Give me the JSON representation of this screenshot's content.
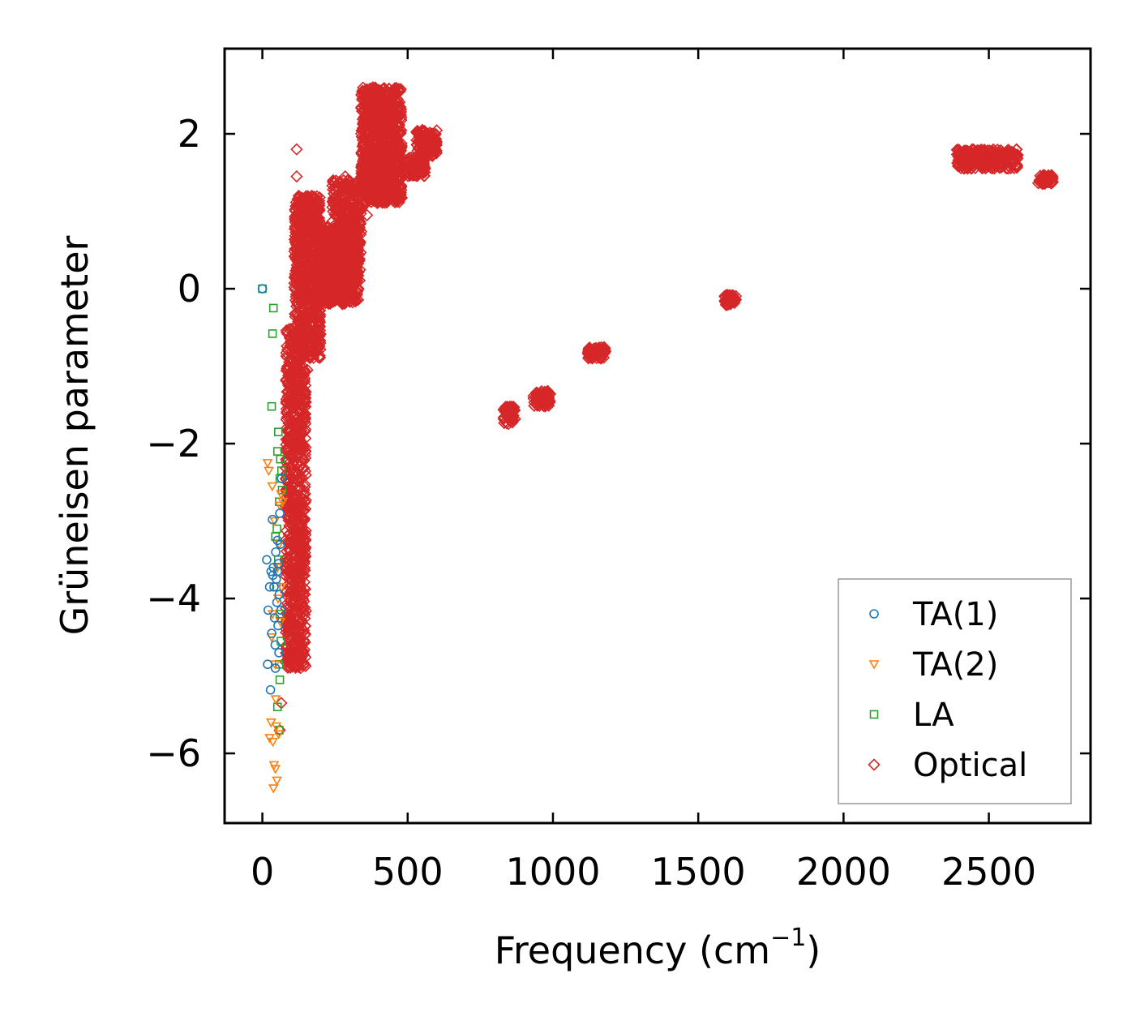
{
  "chart_data": {
    "type": "scatter",
    "title": "",
    "xlabel_main": "Frequency (cm",
    "xlabel_sup": "−1",
    "xlabel_tail": ")",
    "ylabel": "Grüneisen parameter",
    "xlim": [
      -130,
      2850
    ],
    "ylim": [
      -6.9,
      3.1
    ],
    "xticks": [
      0,
      500,
      1000,
      1500,
      2000,
      2500
    ],
    "xtick_labels": [
      "0",
      "500",
      "1000",
      "1500",
      "2000",
      "2500"
    ],
    "yticks": [
      -6,
      -4,
      -2,
      0,
      2
    ],
    "ytick_labels": [
      "−6",
      "−4",
      "−2",
      "0",
      "2"
    ],
    "grid": false,
    "legend_position": "lower-right",
    "series": [
      {
        "name": "TA(1)",
        "marker": "circle",
        "color": "#1f77b4",
        "points": [
          [
            0,
            0
          ],
          [
            15,
            -3.5
          ],
          [
            20,
            -4.15
          ],
          [
            18,
            -4.85
          ],
          [
            28,
            -5.18
          ],
          [
            30,
            -3.65
          ],
          [
            32,
            -4.45
          ],
          [
            35,
            -2.98
          ],
          [
            38,
            -3.6
          ],
          [
            40,
            -3.85
          ],
          [
            42,
            -4.25
          ],
          [
            44,
            -4.6
          ],
          [
            46,
            -3.4
          ],
          [
            48,
            -3.75
          ],
          [
            50,
            -4.05
          ],
          [
            52,
            -3.25
          ],
          [
            54,
            -4.35
          ],
          [
            55,
            -3.55
          ],
          [
            57,
            -4.7
          ],
          [
            58,
            -3.95
          ],
          [
            60,
            -2.9
          ],
          [
            62,
            -3.3
          ],
          [
            64,
            -4.15
          ],
          [
            66,
            -2.45
          ],
          [
            45,
            -4.9
          ],
          [
            36,
            -3.7
          ],
          [
            25,
            -3.85
          ],
          [
            52,
            -3.65
          ]
        ]
      },
      {
        "name": "TA(2)",
        "marker": "triangle-down",
        "color": "#ff7f0e",
        "points": [
          [
            18,
            -2.25
          ],
          [
            22,
            -2.35
          ],
          [
            25,
            -5.8
          ],
          [
            30,
            -5.6
          ],
          [
            32,
            -4.5
          ],
          [
            34,
            -2.55
          ],
          [
            36,
            -5.85
          ],
          [
            38,
            -6.45
          ],
          [
            40,
            -6.15
          ],
          [
            42,
            -3.0
          ],
          [
            44,
            -4.85
          ],
          [
            46,
            -5.3
          ],
          [
            48,
            -5.65
          ],
          [
            50,
            -6.35
          ],
          [
            52,
            -3.6
          ],
          [
            54,
            -4.0
          ],
          [
            56,
            -5.75
          ],
          [
            58,
            -3.3
          ],
          [
            60,
            -2.8
          ],
          [
            62,
            -4.3
          ],
          [
            64,
            -2.65
          ],
          [
            66,
            -3.85
          ],
          [
            70,
            -2.75
          ],
          [
            45,
            -6.2
          ],
          [
            35,
            -4.2
          ]
        ]
      },
      {
        "name": "LA",
        "marker": "square",
        "color": "#2ca02c",
        "points": [
          [
            0,
            0
          ],
          [
            38,
            -0.25
          ],
          [
            35,
            -0.58
          ],
          [
            32,
            -1.52
          ],
          [
            55,
            -1.85
          ],
          [
            52,
            -2.1
          ],
          [
            60,
            -2.45
          ],
          [
            62,
            -2.2
          ],
          [
            58,
            -2.75
          ],
          [
            50,
            -3.1
          ],
          [
            55,
            -3.5
          ],
          [
            48,
            -3.85
          ],
          [
            60,
            -4.2
          ],
          [
            64,
            -4.55
          ],
          [
            58,
            -4.85
          ],
          [
            60,
            -5.05
          ],
          [
            52,
            -5.4
          ],
          [
            58,
            -5.7
          ],
          [
            66,
            -2.35
          ],
          [
            68,
            -2.6
          ],
          [
            45,
            -3.2
          ]
        ]
      },
      {
        "name": "Optical",
        "marker": "diamond",
        "color": "#d62728",
        "points": [
          [
            118,
            1.8
          ],
          [
            118,
            1.45
          ],
          [
            125,
            1.2
          ],
          [
            170,
            1.2
          ],
          [
            285,
            1.45
          ],
          [
            330,
            1.3
          ],
          [
            345,
            1.05
          ],
          [
            360,
            0.95
          ],
          [
            320,
            0.1
          ],
          [
            300,
            0.35
          ],
          [
            110,
            -1.3
          ],
          [
            155,
            -1.05
          ],
          [
            135,
            -0.85
          ],
          [
            110,
            -0.5
          ],
          [
            80,
            -2.4
          ],
          [
            90,
            -2.8
          ],
          [
            105,
            -3.2
          ],
          [
            112,
            -3.95
          ],
          [
            100,
            -4.5
          ],
          [
            95,
            -4.8
          ],
          [
            110,
            -4.7
          ],
          [
            65,
            -5.35
          ],
          [
            60,
            -5.7
          ],
          [
            850,
            -1.63
          ],
          [
            960,
            -1.42
          ],
          [
            1150,
            -0.83
          ],
          [
            1610,
            -0.14
          ],
          [
            2700,
            1.4
          ],
          [
            530,
            1.55
          ],
          [
            560,
            1.95
          ],
          [
            380,
            2.6
          ],
          [
            420,
            2.35
          ],
          [
            2420,
            1.75
          ],
          [
            2580,
            1.6
          ]
        ],
        "clusters": [
          {
            "x": [
              80,
              150
            ],
            "y": [
              -4.9,
              -0.5
            ],
            "n": 900
          },
          {
            "x": [
              110,
              200
            ],
            "y": [
              -0.9,
              1.2
            ],
            "n": 700
          },
          {
            "x": [
              190,
              330
            ],
            "y": [
              -0.2,
              0.8
            ],
            "n": 600
          },
          {
            "x": [
              240,
              340
            ],
            "y": [
              0.1,
              1.4
            ],
            "n": 400
          },
          {
            "x": [
              340,
              480
            ],
            "y": [
              1.1,
              2.6
            ],
            "n": 900
          },
          {
            "x": [
              500,
              560
            ],
            "y": [
              1.45,
              1.7
            ],
            "n": 120
          },
          {
            "x": [
              530,
              600
            ],
            "y": [
              1.7,
              2.05
            ],
            "n": 150
          },
          {
            "x": [
              830,
              870
            ],
            "y": [
              -1.75,
              -1.52
            ],
            "n": 60
          },
          {
            "x": [
              930,
              990
            ],
            "y": [
              -1.52,
              -1.32
            ],
            "n": 70
          },
          {
            "x": [
              1120,
              1180
            ],
            "y": [
              -0.9,
              -0.75
            ],
            "n": 70
          },
          {
            "x": [
              1590,
              1630
            ],
            "y": [
              -0.22,
              -0.08
            ],
            "n": 50
          },
          {
            "x": [
              2390,
              2600
            ],
            "y": [
              1.55,
              1.8
            ],
            "n": 260
          },
          {
            "x": [
              2670,
              2720
            ],
            "y": [
              1.35,
              1.47
            ],
            "n": 60
          }
        ]
      }
    ]
  }
}
